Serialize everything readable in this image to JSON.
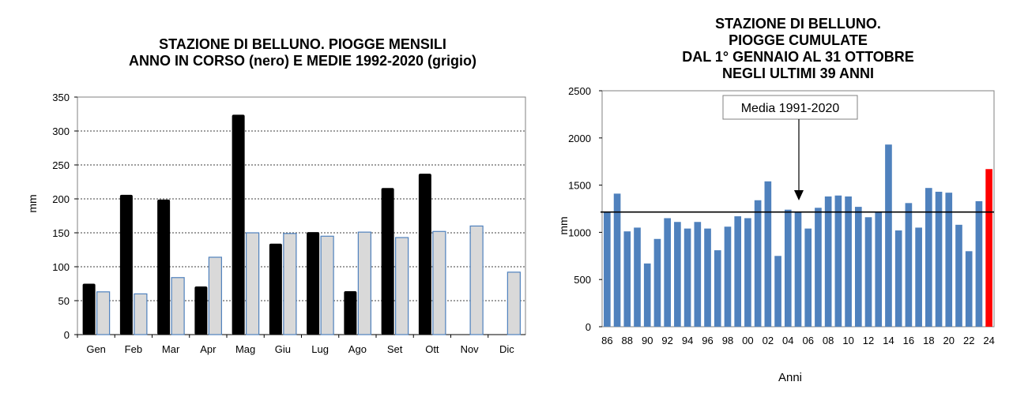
{
  "chart_data": [
    {
      "type": "bar",
      "title_lines": [
        "STAZIONE DI BELLUNO. PIOGGE MENSILI",
        "ANNO IN CORSO (nero) E MEDIE 1992-2020 (grigio)"
      ],
      "xlabel": "",
      "ylabel": "mm",
      "ylim": [
        0,
        350
      ],
      "yticks": [
        0,
        50,
        100,
        150,
        200,
        250,
        300,
        350
      ],
      "grid": true,
      "categories": [
        "Gen",
        "Feb",
        "Mar",
        "Apr",
        "Mag",
        "Giu",
        "Lug",
        "Ago",
        "Set",
        "Ott",
        "Nov",
        "Dic"
      ],
      "series": [
        {
          "color": "#000000",
          "values": [
            75,
            206,
            199,
            71,
            324,
            134,
            151,
            64,
            216,
            237,
            null,
            null
          ]
        },
        {
          "color": "#d9d9d9",
          "values": [
            63,
            60,
            84,
            114,
            150,
            149,
            145,
            151,
            143,
            152,
            160,
            92
          ]
        }
      ]
    },
    {
      "type": "bar",
      "title_lines": [
        "STAZIONE DI BELLUNO.",
        "PIOGGE CUMULATE",
        "DAL 1° GENNAIO AL 31 OTTOBRE",
        "NEGLI ULTIMI 39 ANNI"
      ],
      "xlabel": "Anni",
      "ylabel": "mm",
      "ylim": [
        0,
        2500
      ],
      "yticks": [
        0,
        500,
        1000,
        1500,
        2000,
        2500
      ],
      "grid": false,
      "years": [
        1986,
        1987,
        1988,
        1989,
        1990,
        1991,
        1992,
        1993,
        1994,
        1995,
        1996,
        1997,
        1998,
        1999,
        2000,
        2001,
        2002,
        2003,
        2004,
        2005,
        2006,
        2007,
        2008,
        2009,
        2010,
        2011,
        2012,
        2013,
        2014,
        2015,
        2016,
        2017,
        2018,
        2019,
        2020,
        2021,
        2022,
        2023,
        2024
      ],
      "xtick_labels": [
        "86",
        "88",
        "90",
        "92",
        "94",
        "96",
        "98",
        "00",
        "02",
        "04",
        "06",
        "08",
        "10",
        "12",
        "14",
        "16",
        "18",
        "20",
        "22",
        "24"
      ],
      "values": [
        1210,
        1410,
        1010,
        1050,
        670,
        930,
        1150,
        1110,
        1040,
        1110,
        1040,
        810,
        1060,
        1170,
        1150,
        1340,
        1540,
        750,
        1240,
        1220,
        1040,
        1260,
        1380,
        1390,
        1380,
        1270,
        1160,
        1220,
        1930,
        1020,
        1310,
        1050,
        1470,
        1430,
        1420,
        1080,
        800,
        1330,
        1670
      ],
      "bar_color": "#4f81bd",
      "highlight_color": "#ff0000",
      "highlight_index": 38,
      "mean_line_value": 1215,
      "annotation": "Media 1991-2020"
    }
  ]
}
